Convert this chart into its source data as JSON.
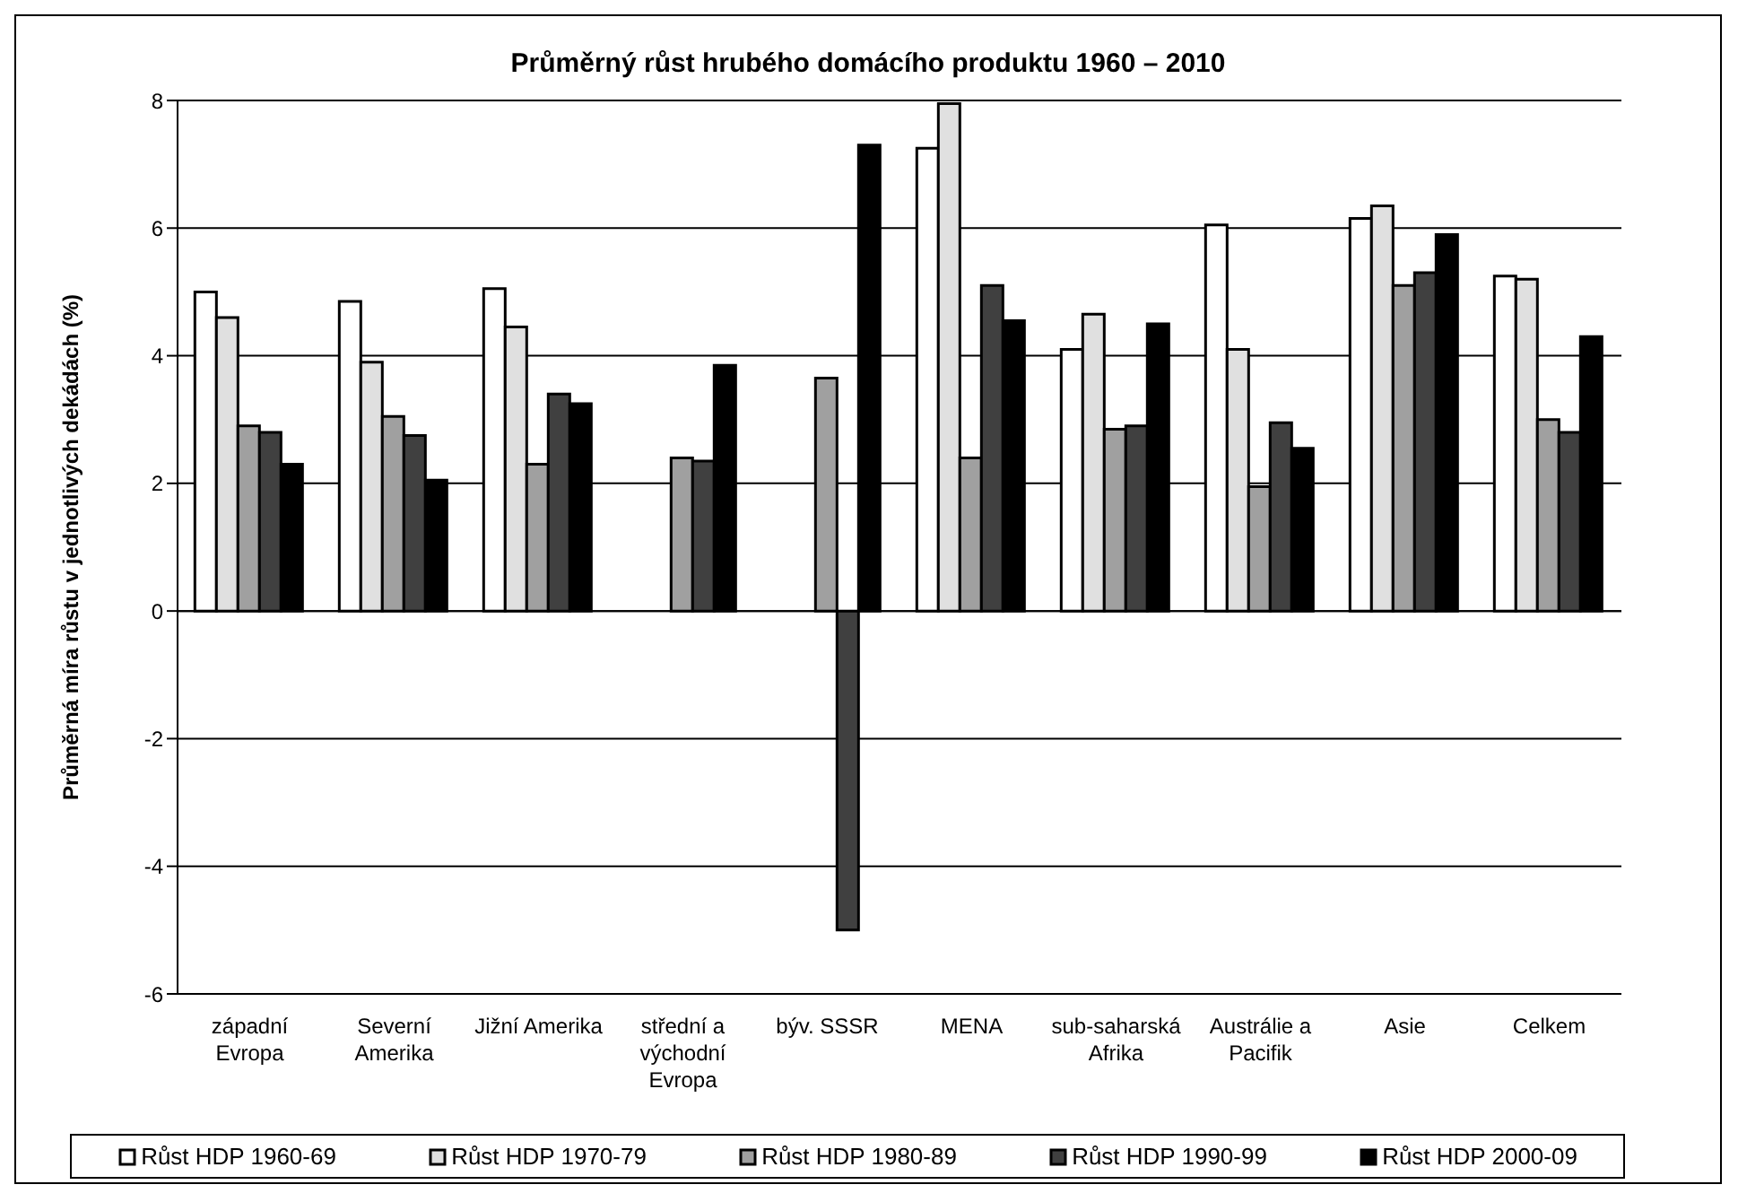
{
  "chart_data": {
    "type": "bar",
    "title": "Průměrný růst hrubého domácího produktu 1960 – 2010",
    "ylabel": "Průměrná míra růstu v jednotlivých dekádách (%)",
    "categories": [
      "západní Evropa",
      "Severní Amerika",
      "Jižní Amerika",
      "střední a východní Evropa",
      "býv. SSSR",
      "MENA",
      "sub-saharská Afrika",
      "Austrálie a Pacifik",
      "Asie",
      "Celkem"
    ],
    "series": [
      {
        "name": "Růst HDP 1960-69",
        "color": "#ffffff",
        "values": [
          5.0,
          4.85,
          5.05,
          null,
          null,
          7.25,
          4.1,
          6.05,
          6.15,
          5.25
        ]
      },
      {
        "name": "Růst HDP 1970-79",
        "color": "#e0e0e0",
        "values": [
          4.6,
          3.9,
          4.45,
          null,
          null,
          7.95,
          4.65,
          4.1,
          6.35,
          5.2
        ]
      },
      {
        "name": "Růst HDP 1980-89",
        "color": "#a0a0a0",
        "values": [
          2.9,
          3.05,
          2.3,
          2.4,
          3.65,
          2.4,
          2.85,
          1.95,
          5.1,
          3.0
        ]
      },
      {
        "name": "Růst HDP 1990-99",
        "color": "#404040",
        "values": [
          2.8,
          2.75,
          3.4,
          2.35,
          -5.0,
          5.1,
          2.9,
          2.95,
          5.3,
          2.8
        ]
      },
      {
        "name": "Růst HDP 2000-09",
        "color": "#000000",
        "values": [
          2.3,
          2.05,
          3.25,
          3.85,
          7.3,
          4.55,
          4.5,
          2.55,
          5.9,
          4.3
        ]
      }
    ],
    "ylim": [
      -6,
      8
    ],
    "yticks": [
      -6,
      -4,
      -2,
      0,
      2,
      4,
      6,
      8
    ],
    "grid": "y",
    "legend": "bottom"
  }
}
